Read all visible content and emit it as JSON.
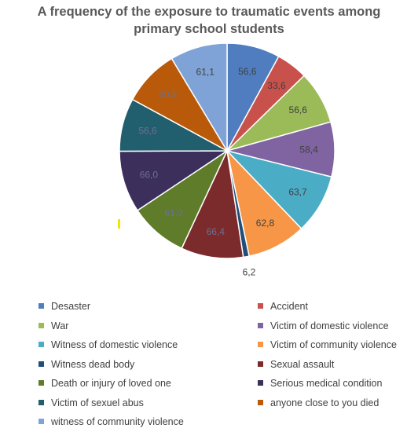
{
  "chart_data": {
    "type": "pie",
    "title_lines": [
      "A frequency of the exposure to traumatic events among",
      "primary school students"
    ],
    "slices": [
      {
        "label": "Desaster",
        "value": 56.6,
        "value_label": "56,6",
        "color": "#4f7dc0"
      },
      {
        "label": "Accident",
        "value": 33.6,
        "value_label": "33,6",
        "color": "#c9514c"
      },
      {
        "label": "War",
        "value": 56.6,
        "value_label": "56,6",
        "color": "#9bbb59"
      },
      {
        "label": "Victim of domestic violence",
        "value": 58.4,
        "value_label": "58,4",
        "color": "#8064a2"
      },
      {
        "label": "Witness of domestic violence",
        "value": 63.7,
        "value_label": "63,7",
        "color": "#4bacc6"
      },
      {
        "label": "Victim of community violence",
        "value": 62.8,
        "value_label": "62,8",
        "color": "#f79646"
      },
      {
        "label": "Witness dead body",
        "value": 6.2,
        "value_label": "6,2",
        "color": "#1f4e79"
      },
      {
        "label": "Sexual assault",
        "value": 66.4,
        "value_label": "66,4",
        "color": "#7b2b2b"
      },
      {
        "label": "Death or injury of loved one",
        "value": 61.9,
        "value_label": "61,9",
        "color": "#5e7c2a"
      },
      {
        "label": "Serious medical condition",
        "value": 66.0,
        "value_label": "66,0",
        "color": "#3c2f5c"
      },
      {
        "label": "Victim of sexuel abus",
        "value": 56.6,
        "value_label": "56,6",
        "color": "#215f6e"
      },
      {
        "label": "anyone close to you died",
        "value": 60.2,
        "value_label": "60,2",
        "color": "#b85a09"
      },
      {
        "label": "witness of community violence",
        "value": 61.1,
        "value_label": "61,1",
        "color": "#7fa3d6"
      }
    ],
    "legend_placement": "bottom"
  }
}
